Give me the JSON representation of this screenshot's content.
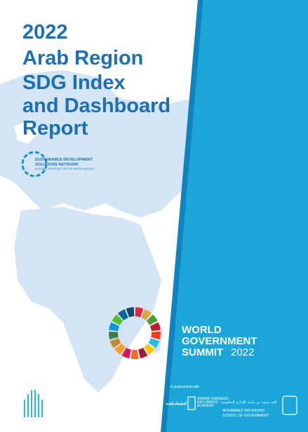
{
  "cover": {
    "title_lines": [
      "2022",
      "Arab Region",
      "SDG Index",
      "and Dashboard",
      "Report"
    ],
    "sdsn": {
      "lines": [
        "SUSTAINABLE DEVELOPMENT",
        "SOLUTIONS NETWORK"
      ],
      "tagline": "A GLOBAL INITIATIVE FOR THE UNITED NATIONS"
    },
    "summit": {
      "lines": [
        "WORLD",
        "GOVERNMENT",
        "SUMMIT"
      ],
      "year": "2022"
    },
    "partnership": "In partnership with",
    "academy": {
      "arabic": "أكاديمية أنور قرقاش الدبلوماسية",
      "lines": [
        "ANWAR GARGASH",
        "DIPLOMATIC",
        "ACADEMY"
      ]
    },
    "school": {
      "arabic": "كلية محمد بن راشد للإدارة الحكومية",
      "lines": [
        "MOHAMMED BIN RASHID",
        "SCHOOL OF GOVERNMENT"
      ]
    }
  }
}
